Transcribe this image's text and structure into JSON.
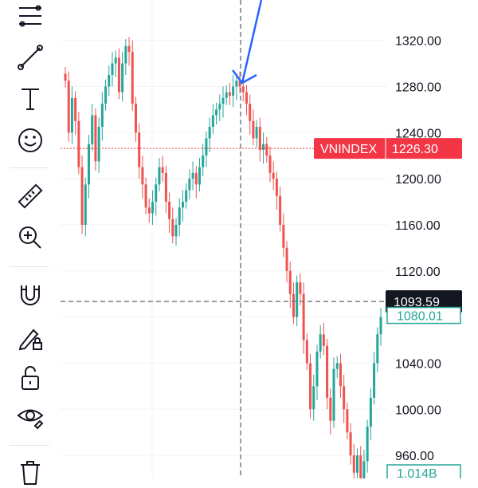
{
  "toolbar": {
    "tools": [
      {
        "name": "fib-retracement-icon"
      },
      {
        "name": "trend-line-icon"
      },
      {
        "name": "text-icon"
      },
      {
        "name": "emoji-icon"
      },
      {
        "name": "ruler-icon"
      },
      {
        "name": "zoom-in-icon"
      },
      {
        "name": "magnet-icon"
      },
      {
        "name": "lock-drawing-icon"
      },
      {
        "name": "unlock-icon"
      },
      {
        "name": "eye-icon"
      },
      {
        "name": "trash-icon"
      }
    ]
  },
  "chart_data": {
    "type": "candlestick",
    "symbol": "VNINDEX",
    "ylim": [
      940,
      1355
    ],
    "y_ticks": [
      "1320.00",
      "1280.00",
      "1240.00",
      "1200.00",
      "1160.00",
      "1120.00",
      "1080.00",
      "1040.00",
      "1000.00",
      "960.00"
    ],
    "last_price": 1226.3,
    "last_price_label": "1226.30",
    "crosshair_price": 1093.59,
    "crosshair_label": "1093.59",
    "bottom_labels": [
      "1080.01",
      "1.014B"
    ],
    "colors": {
      "up": "#26a69a",
      "down": "#ef5350",
      "symbol_tag": "#f23645",
      "crosshair_tag": "#131722",
      "arrow": "#2962ff"
    },
    "closes": [
      1285,
      1240,
      1270,
      1250,
      1210,
      1160,
      1195,
      1230,
      1255,
      1215,
      1245,
      1265,
      1280,
      1290,
      1300,
      1305,
      1275,
      1300,
      1315,
      1310,
      1265,
      1240,
      1210,
      1195,
      1175,
      1170,
      1180,
      1195,
      1210,
      1205,
      1180,
      1165,
      1150,
      1160,
      1175,
      1180,
      1190,
      1200,
      1205,
      1195,
      1210,
      1220,
      1235,
      1245,
      1255,
      1260,
      1265,
      1270,
      1275,
      1272,
      1280,
      1285,
      1280,
      1275,
      1265,
      1250,
      1235,
      1245,
      1225,
      1230,
      1220,
      1205,
      1200,
      1185,
      1160,
      1140,
      1120,
      1100,
      1080,
      1110,
      1100,
      1060,
      1040,
      1000,
      1020,
      1050,
      1065,
      1055,
      1010,
      990,
      1035,
      1040,
      1020,
      1000,
      980,
      960,
      945,
      960,
      940,
      955,
      985,
      1010,
      1040,
      1065,
      1080
    ]
  }
}
